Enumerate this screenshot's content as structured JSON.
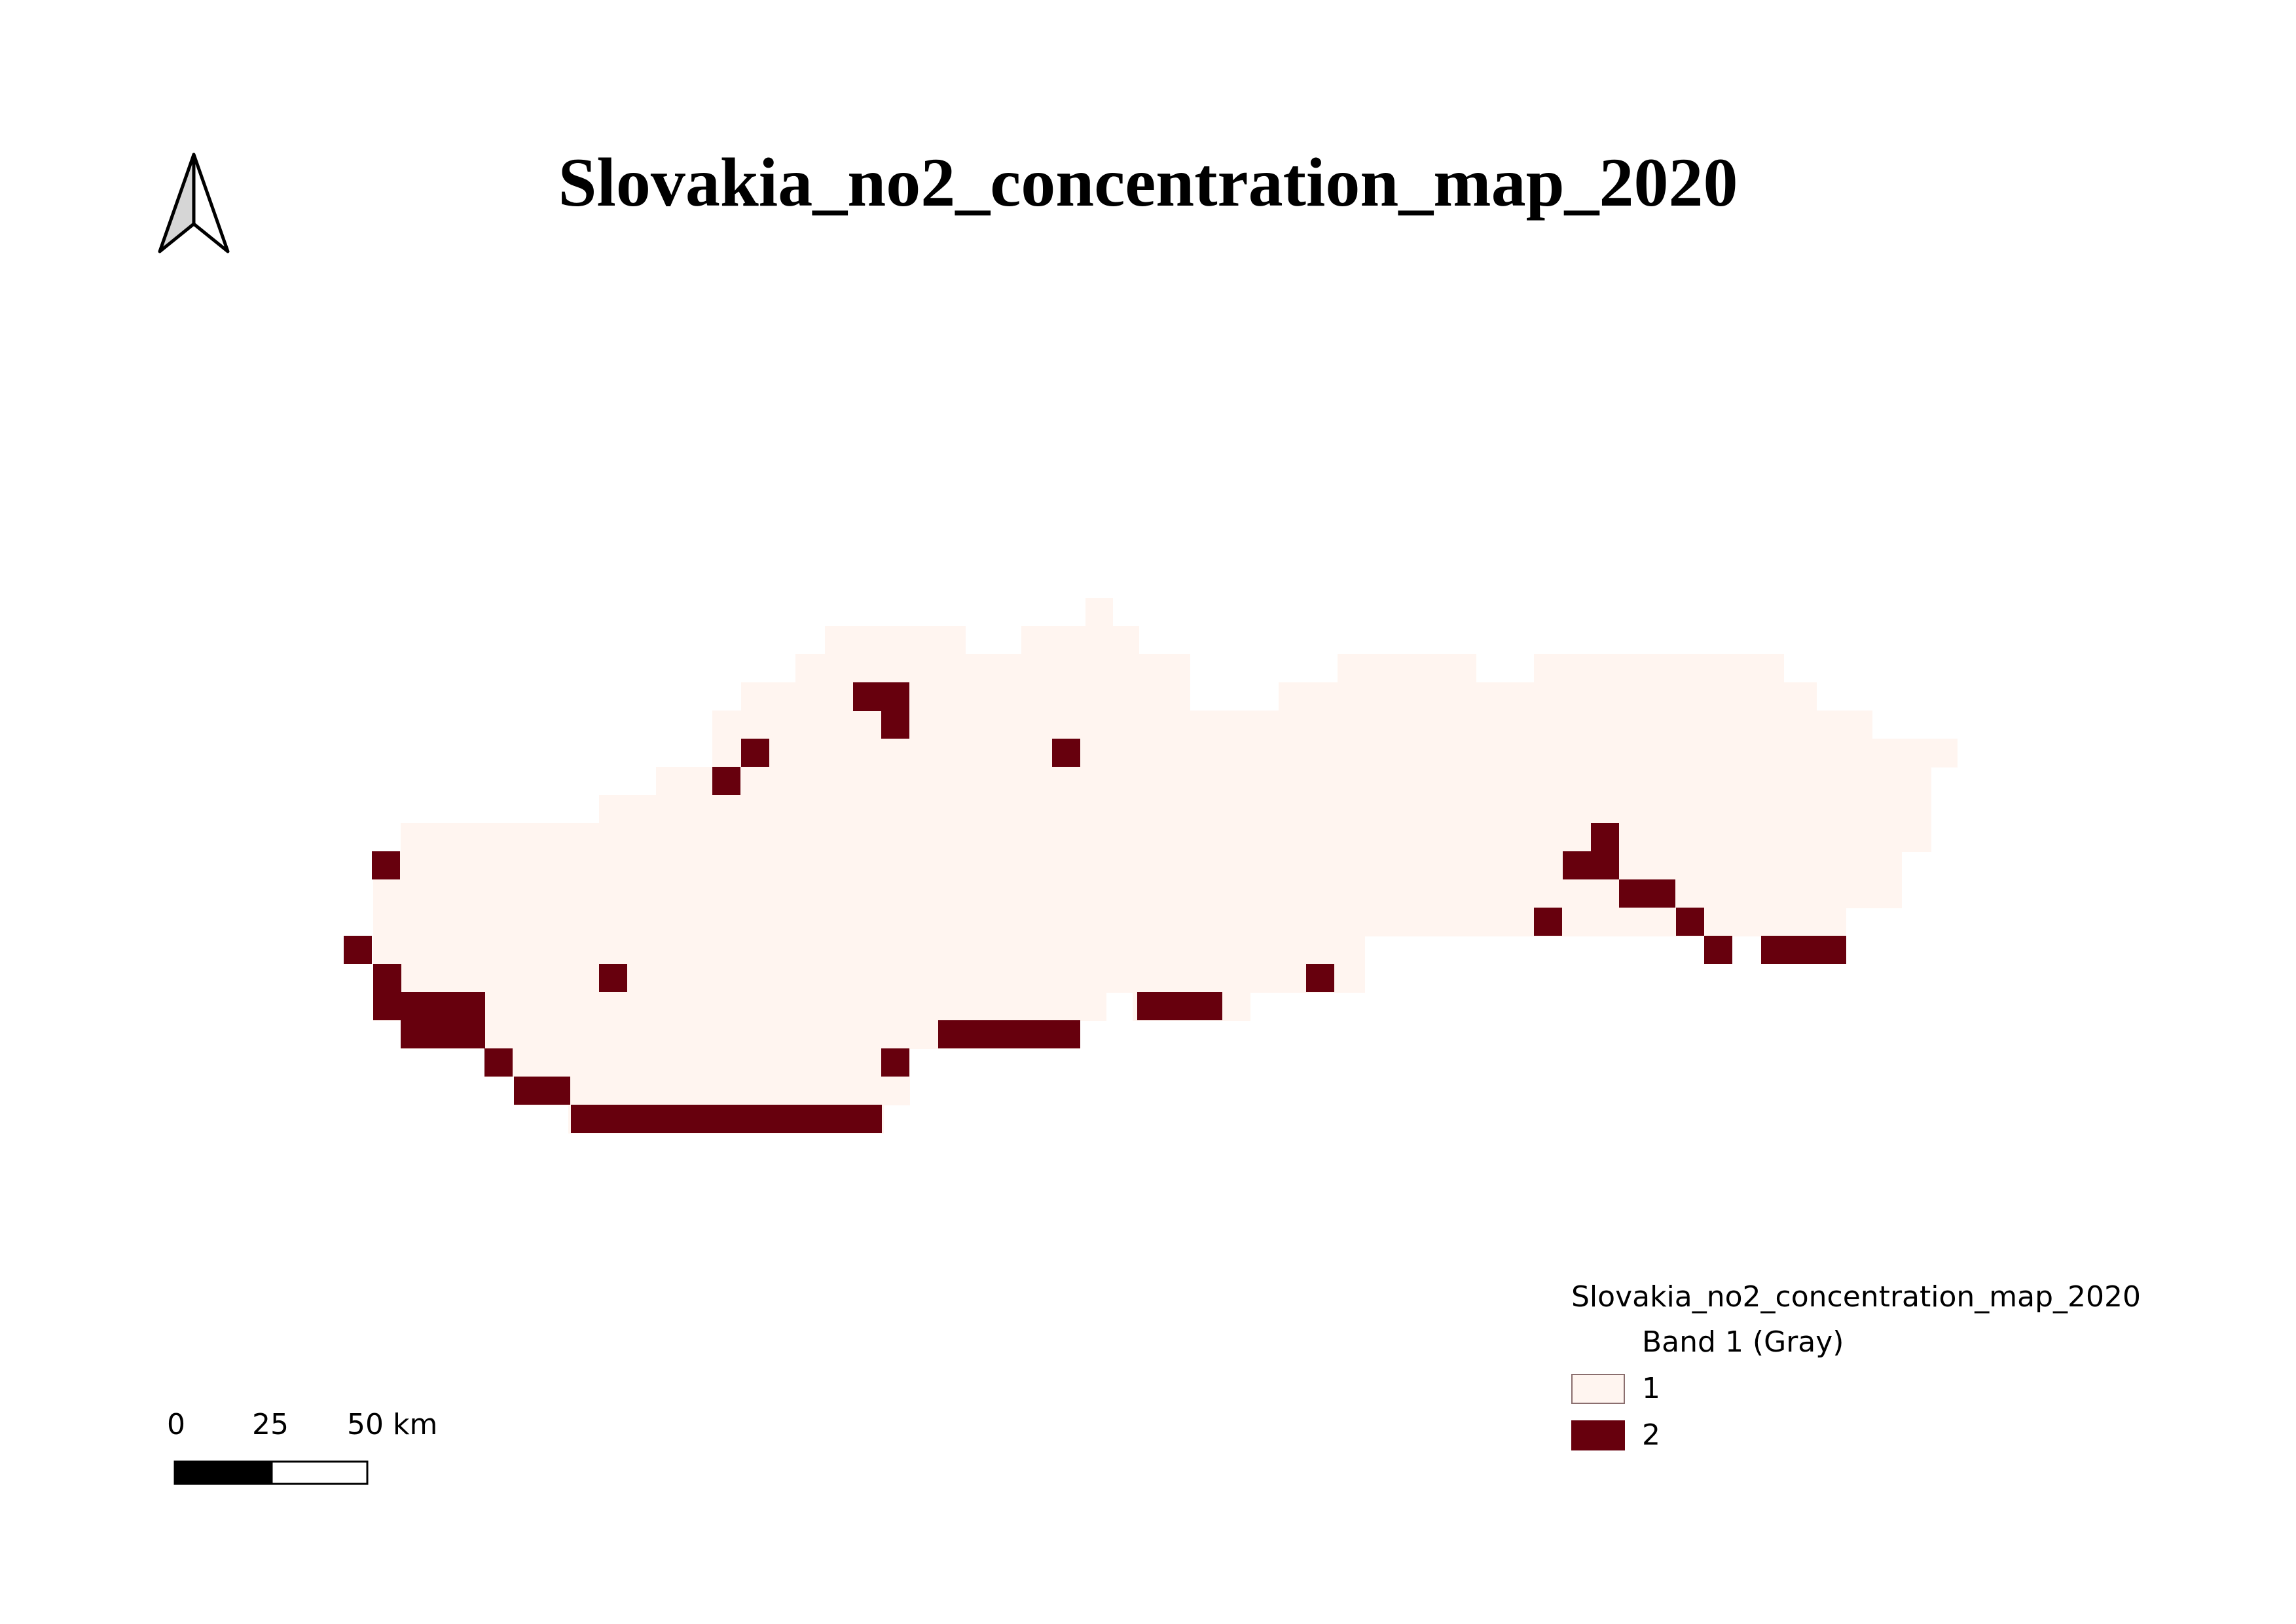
{
  "map": {
    "title": "Slovakia_no2_concentration_map_2020",
    "colors": {
      "class_1": "#fff5f0",
      "class_2": "#67000d",
      "swatch_border": "#8a6e6e"
    },
    "grid": {
      "rows": [
        "..........................#................................................",
        "........................#######..######..........................................",
        "......................#############.#############...........#####..#######...........",
        "......................###################.......................................",
        ".......................##########################################################",
        ".......................###########################################################",
        "..................................................................................",
        "........................................................................................."
      ]
    },
    "legend": {
      "title": "Slovakia_no2_concentration_map_2020",
      "band": "Band 1 (Gray)",
      "items": [
        {
          "label": "1",
          "color": "#fff5f0"
        },
        {
          "label": "2",
          "color": "#67000d"
        }
      ]
    },
    "scale_bar": {
      "labels": [
        "0",
        "25",
        "50 km"
      ]
    },
    "north_arrow": "north-arrow-icon"
  }
}
